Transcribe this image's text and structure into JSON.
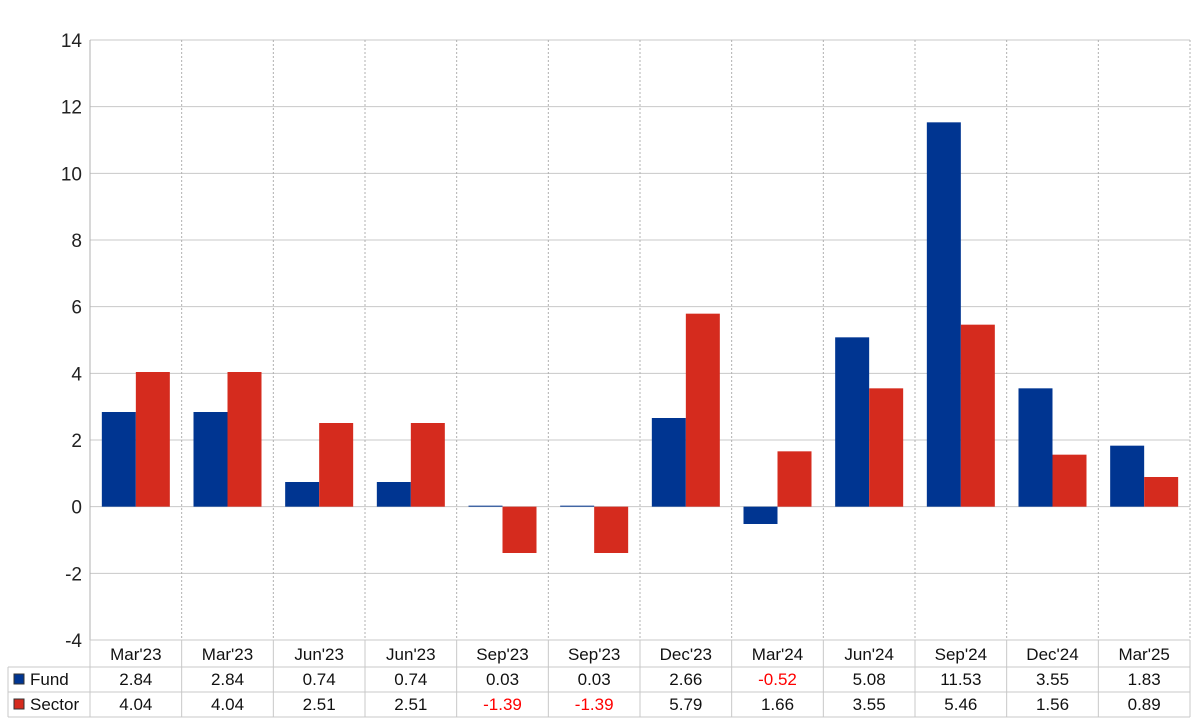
{
  "chart_data": {
    "type": "bar",
    "categories": [
      "Mar'23",
      "Mar'23",
      "Jun'23",
      "Jun'23",
      "Sep'23",
      "Sep'23",
      "Dec'23",
      "Mar'24",
      "Jun'24",
      "Sep'24",
      "Dec'24",
      "Mar'25"
    ],
    "series": [
      {
        "name": "Fund",
        "color": "#003591",
        "values": [
          2.84,
          2.84,
          0.74,
          0.74,
          0.03,
          0.03,
          2.66,
          -0.52,
          5.08,
          11.53,
          3.55,
          1.83
        ],
        "labels": [
          "2.84",
          "2.84",
          "0.74",
          "0.74",
          "0.03",
          "0.03",
          "2.66",
          "-0.52",
          "5.08",
          "11.53",
          "3.55",
          "1.83"
        ]
      },
      {
        "name": "Sector",
        "color": "#d52b1e",
        "values": [
          4.04,
          4.04,
          2.51,
          2.51,
          -1.39,
          -1.39,
          5.79,
          1.66,
          3.55,
          5.46,
          1.56,
          0.89
        ],
        "labels": [
          "4.04",
          "4.04",
          "2.51",
          "2.51",
          "-1.39",
          "-1.39",
          "5.79",
          "1.66",
          "3.55",
          "5.46",
          "1.56",
          "0.89"
        ]
      }
    ],
    "ylim": [
      -4,
      14
    ],
    "yticks": [
      "-4",
      "-2",
      "0",
      "2",
      "4",
      "6",
      "8",
      "10",
      "12",
      "14"
    ],
    "grid": true,
    "legend": "data-table-left",
    "negative_label_color": "#ff0000"
  }
}
